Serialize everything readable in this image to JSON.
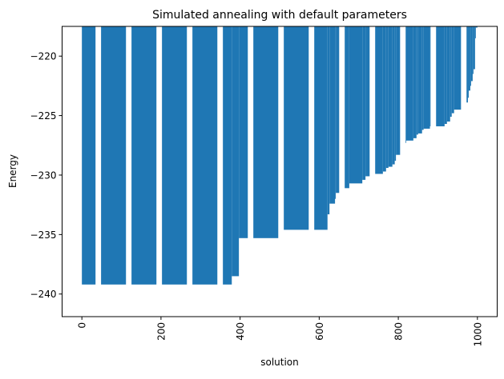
{
  "chart_data": {
    "type": "bar",
    "title": "Simulated annealing with default parameters",
    "xlabel": "solution",
    "ylabel": "Energy",
    "xlim": [
      -50,
      1050
    ],
    "ylim": [
      -241.9,
      -217.5
    ],
    "xticks": [
      0,
      200,
      400,
      600,
      800,
      1000
    ],
    "xtick_labels": [
      "0",
      "200",
      "400",
      "600",
      "800",
      "1000"
    ],
    "yticks": [
      -240,
      -235,
      -230,
      -225,
      -220
    ],
    "ytick_labels": [
      "−240",
      "−235",
      "−230",
      "−225",
      "−220"
    ],
    "grid": false,
    "bar_color": "#1f77b4",
    "segments_note": "sorted energies, constant over solution index ranges [start, end, energy]",
    "segments": [
      [
        0,
        379,
        -239.2
      ],
      [
        379,
        397,
        -238.5
      ],
      [
        397,
        502,
        -235.3
      ],
      [
        502,
        621,
        -234.6
      ],
      [
        621,
        626,
        -233.3
      ],
      [
        626,
        640,
        -232.4
      ],
      [
        640,
        642,
        -232.0
      ],
      [
        642,
        662,
        -231.5
      ],
      [
        662,
        676,
        -231.1
      ],
      [
        676,
        709,
        -230.7
      ],
      [
        709,
        717,
        -230.4
      ],
      [
        717,
        730,
        -230.1
      ],
      [
        730,
        761,
        -229.9
      ],
      [
        761,
        769,
        -229.7
      ],
      [
        769,
        775,
        -229.4
      ],
      [
        775,
        785,
        -229.3
      ],
      [
        785,
        791,
        -229.1
      ],
      [
        791,
        794,
        -228.8
      ],
      [
        794,
        805,
        -228.3
      ],
      [
        805,
        820,
        -227.3
      ],
      [
        820,
        838,
        -227.1
      ],
      [
        838,
        846,
        -226.9
      ],
      [
        846,
        850,
        -226.6
      ],
      [
        850,
        860,
        -226.5
      ],
      [
        860,
        864,
        -226.2
      ],
      [
        864,
        880,
        -226.1
      ],
      [
        880,
        917,
        -225.9
      ],
      [
        917,
        923,
        -225.7
      ],
      [
        923,
        931,
        -225.5
      ],
      [
        931,
        935,
        -225.1
      ],
      [
        935,
        941,
        -224.8
      ],
      [
        941,
        960,
        -224.5
      ],
      [
        960,
        976,
        -223.9
      ],
      [
        976,
        978,
        -223.5
      ],
      [
        978,
        982,
        -222.9
      ],
      [
        982,
        984,
        -222.5
      ],
      [
        984,
        988,
        -222.1
      ],
      [
        988,
        990,
        -221.5
      ],
      [
        990,
        994,
        -221.1
      ],
      [
        994,
        996,
        -218.5
      ],
      [
        996,
        1000,
        -217.6
      ]
    ]
  }
}
